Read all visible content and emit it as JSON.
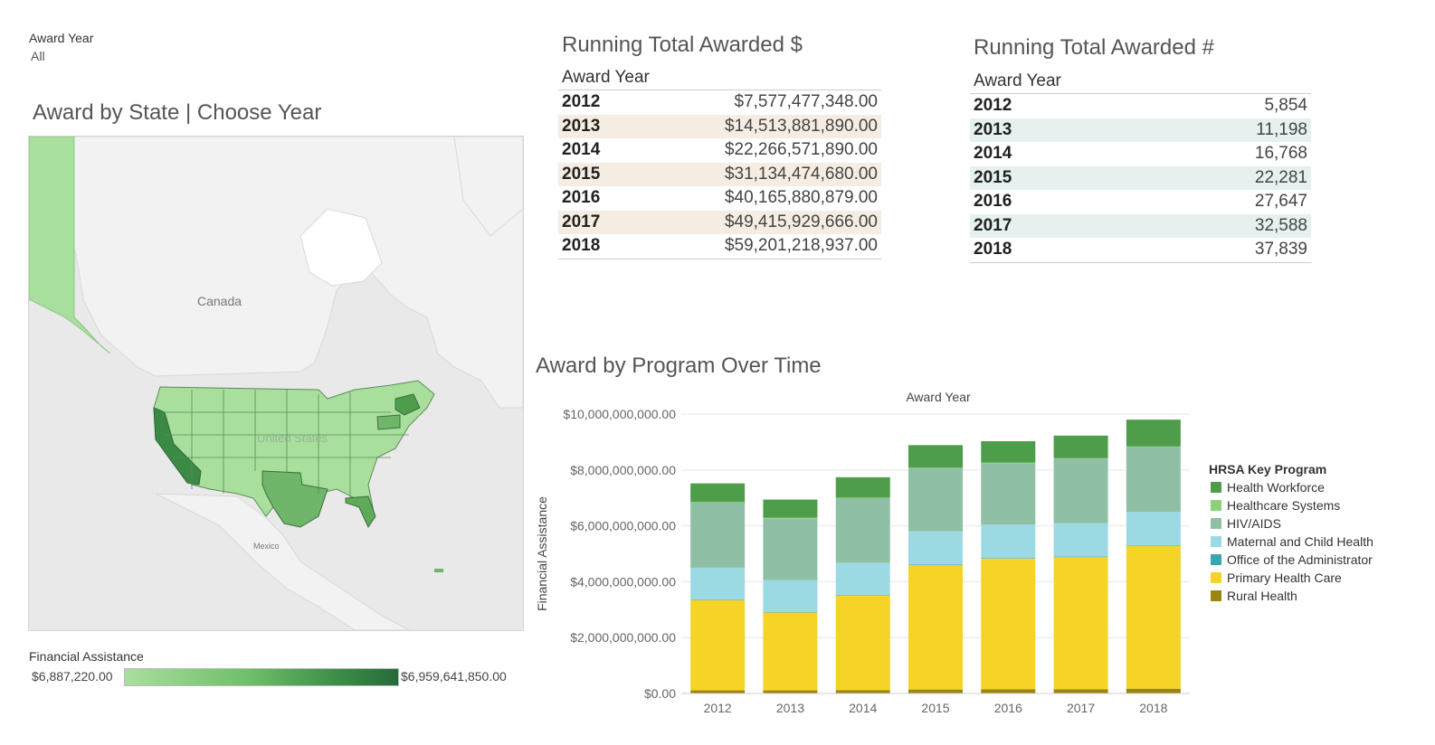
{
  "filter": {
    "title": "Award Year",
    "value": "All"
  },
  "map": {
    "title": "Award by State | Choose Year",
    "labels": {
      "canada": "Canada",
      "united_states": "United States",
      "mexico": "Mexico"
    },
    "legend": {
      "title": "Financial Assistance",
      "min": "$6,887,220.00",
      "max": "$6,959,641,850.00"
    }
  },
  "running_dollar": {
    "title": "Running Total Awarded $",
    "header": "Award Year",
    "rows": [
      {
        "year": "2012",
        "value": "$7,577,477,348.00"
      },
      {
        "year": "2013",
        "value": "$14,513,881,890.00"
      },
      {
        "year": "2014",
        "value": "$22,266,571,890.00"
      },
      {
        "year": "2015",
        "value": "$31,134,474,680.00"
      },
      {
        "year": "2016",
        "value": "$40,165,880,879.00"
      },
      {
        "year": "2017",
        "value": "$49,415,929,666.00"
      },
      {
        "year": "2018",
        "value": "$59,201,218,937.00"
      }
    ]
  },
  "running_count": {
    "title": "Running Total Awarded #",
    "header": "Award Year",
    "rows": [
      {
        "year": "2012",
        "value": "5,854"
      },
      {
        "year": "2013",
        "value": "11,198"
      },
      {
        "year": "2014",
        "value": "16,768"
      },
      {
        "year": "2015",
        "value": "22,281"
      },
      {
        "year": "2016",
        "value": "27,647"
      },
      {
        "year": "2017",
        "value": "32,588"
      },
      {
        "year": "2018",
        "value": "37,839"
      }
    ]
  },
  "chart_data": {
    "type": "bar",
    "stacked": true,
    "title": "Award by Program Over Time",
    "xlabel": "Award Year",
    "ylabel": "Financial Assistance",
    "ylim": [
      0,
      10000000000
    ],
    "yticks": [
      0,
      2000000000,
      4000000000,
      6000000000,
      8000000000,
      10000000000
    ],
    "ytick_labels": [
      "$0.00",
      "$2,000,000,000.00",
      "$4,000,000,000.00",
      "$6,000,000,000.00",
      "$8,000,000,000.00",
      "$10,000,000,000.00"
    ],
    "categories": [
      "2012",
      "2013",
      "2014",
      "2015",
      "2016",
      "2017",
      "2018"
    ],
    "legend_title": "HRSA Key Program",
    "legend_position": "right",
    "series": [
      {
        "name": "Rural Health",
        "color": "#9b8510",
        "values": [
          110000000,
          110000000,
          120000000,
          140000000,
          150000000,
          150000000,
          170000000
        ]
      },
      {
        "name": "Primary Health Care",
        "color": "#f5d327",
        "values": [
          3230000000,
          2790000000,
          3380000000,
          4450000000,
          4680000000,
          4730000000,
          5110000000
        ]
      },
      {
        "name": "Office of the Administrator",
        "color": "#3aa5b3",
        "values": [
          20000000,
          20000000,
          20000000,
          20000000,
          20000000,
          20000000,
          20000000
        ]
      },
      {
        "name": "Maternal and Child Health",
        "color": "#9bd9e3",
        "values": [
          1140000000,
          1140000000,
          1160000000,
          1200000000,
          1200000000,
          1200000000,
          1200000000
        ]
      },
      {
        "name": "HIV/AIDS",
        "color": "#8fbfa4",
        "values": [
          2330000000,
          2210000000,
          2310000000,
          2250000000,
          2190000000,
          2300000000,
          2320000000
        ]
      },
      {
        "name": "Healthcare Systems",
        "color": "#8ed17d",
        "values": [
          20000000,
          20000000,
          20000000,
          20000000,
          20000000,
          20000000,
          20000000
        ]
      },
      {
        "name": "Health Workforce",
        "color": "#4e9d4a",
        "values": [
          670000000,
          650000000,
          730000000,
          810000000,
          770000000,
          810000000,
          960000000
        ]
      }
    ],
    "legend_order": [
      "Health Workforce",
      "Healthcare Systems",
      "HIV/AIDS",
      "Maternal and Child Health",
      "Office of the Administrator",
      "Primary Health Care",
      "Rural Health"
    ]
  }
}
